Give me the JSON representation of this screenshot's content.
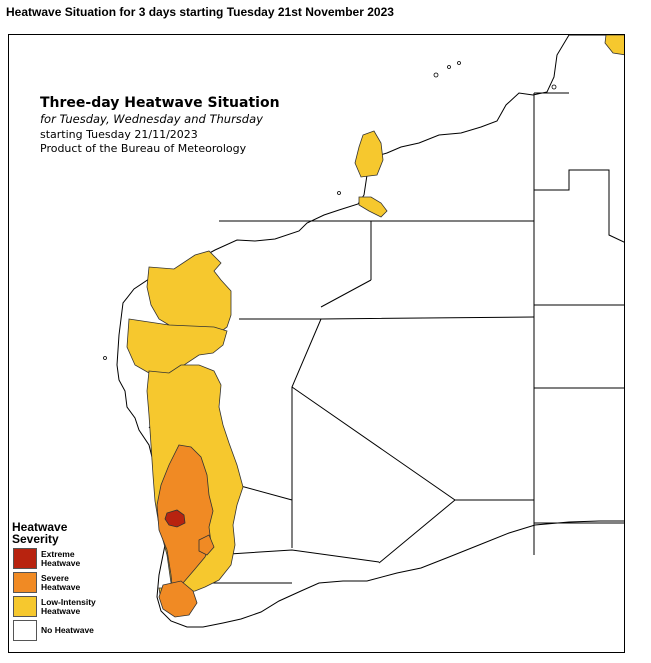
{
  "header": {
    "title": "Heatwave Situation for 3 days starting Tuesday 21st November 2023"
  },
  "info": {
    "title": "Three-day Heatwave Situation",
    "subtitle": "for Tuesday, Wednesday and Thursday",
    "date_line": "starting Tuesday 21/11/2023",
    "product_line": "Product of the Bureau of Meteorology"
  },
  "legend": {
    "title_line1": "Heatwave",
    "title_line2": "Severity",
    "items": [
      {
        "label": "Extreme\nHeatwave",
        "color": "#b8230f"
      },
      {
        "label": "Severe\nHeatwave",
        "color": "#f08a24"
      },
      {
        "label": "Low-Intensity\nHeatwave",
        "color": "#f6c82e"
      },
      {
        "label": "No Heatwave",
        "color": "#ffffff"
      }
    ]
  },
  "colors": {
    "extreme": "#b8230f",
    "severe": "#f08a24",
    "low_intensity": "#f6c82e",
    "border": "#000000"
  }
}
